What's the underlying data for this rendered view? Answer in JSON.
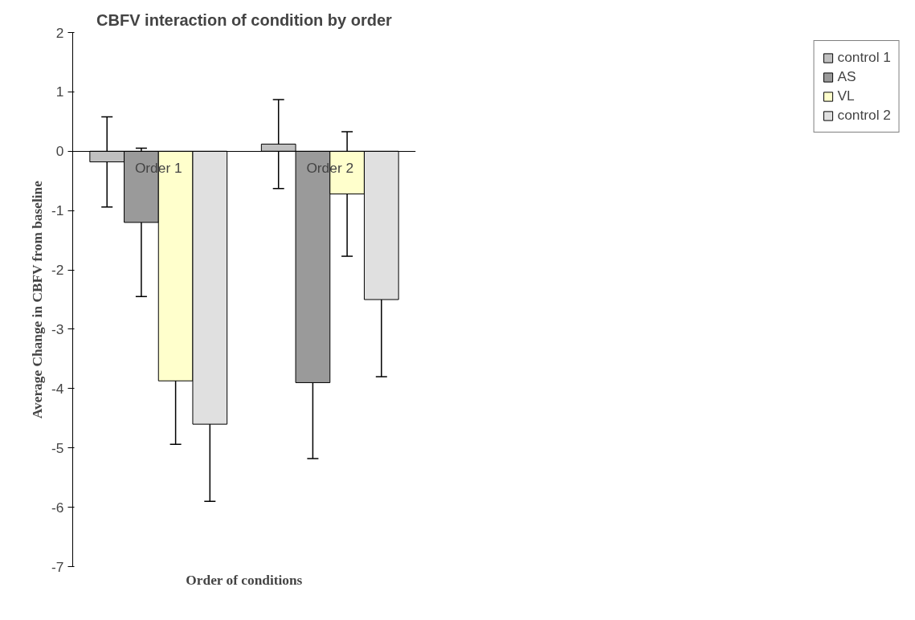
{
  "chart_data": {
    "type": "bar",
    "title": "CBFV interaction of condition by order",
    "xlabel": "Order of conditions",
    "ylabel": "Average Change in CBFV from baseline",
    "categories": [
      "Order 1",
      "Order 2"
    ],
    "series": [
      {
        "name": "control 1",
        "color": "#c0c0c0",
        "values": [
          -0.18,
          0.12
        ],
        "errors": [
          0.76,
          0.75
        ]
      },
      {
        "name": "AS",
        "color": "#9a9a9a",
        "values": [
          -1.2,
          -3.9
        ],
        "errors": [
          1.25,
          1.28
        ]
      },
      {
        "name": "VL",
        "color": "#ffffcc",
        "values": [
          -3.87,
          -0.72
        ],
        "errors": [
          1.07,
          1.05
        ]
      },
      {
        "name": "control 2",
        "color": "#e0e0e0",
        "values": [
          -4.6,
          -2.5
        ],
        "errors": [
          1.3,
          1.3
        ]
      }
    ],
    "ylim": [
      -7,
      2
    ],
    "yticks": [
      -7,
      -6,
      -5,
      -4,
      -3,
      -2,
      -1,
      0,
      1,
      2
    ],
    "grid": false,
    "legend": "right"
  }
}
